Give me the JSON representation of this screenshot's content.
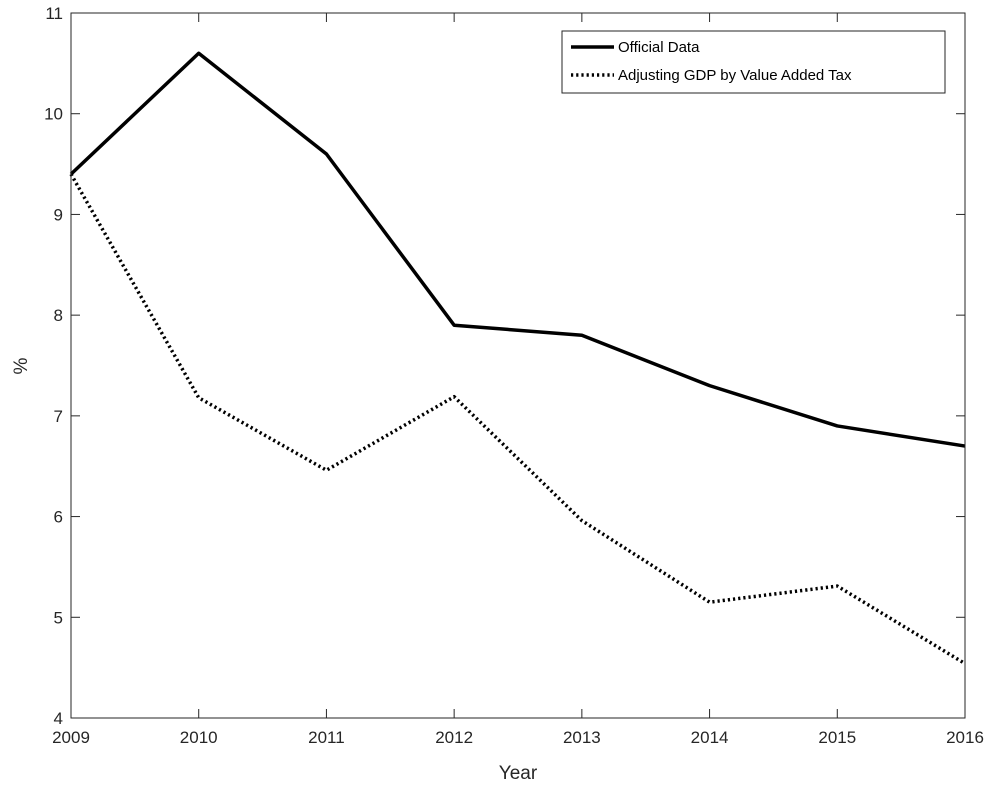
{
  "chart_data": {
    "type": "line",
    "title": "",
    "xlabel": "Year",
    "ylabel": "%",
    "x": [
      2009,
      2010,
      2011,
      2012,
      2013,
      2014,
      2015,
      2016
    ],
    "xlim": [
      2009,
      2016
    ],
    "ylim": [
      4,
      11
    ],
    "xticks": [
      "2009",
      "2010",
      "2011",
      "2012",
      "2013",
      "2014",
      "2015",
      "2016"
    ],
    "yticks": [
      "4",
      "5",
      "6",
      "7",
      "8",
      "9",
      "10",
      "11"
    ],
    "grid": false,
    "legend_position": "top-right",
    "series": [
      {
        "name": "Official Data",
        "line_style": "solid",
        "color": "#000000",
        "values": [
          9.4,
          10.6,
          9.6,
          7.9,
          7.8,
          7.3,
          6.9,
          6.7
        ]
      },
      {
        "name": "Adjusting GDP by Value Added Tax",
        "line_style": "dotted",
        "color": "#000000",
        "values": [
          9.4,
          7.18,
          6.46,
          7.19,
          5.96,
          5.15,
          5.31,
          4.54
        ]
      }
    ]
  }
}
